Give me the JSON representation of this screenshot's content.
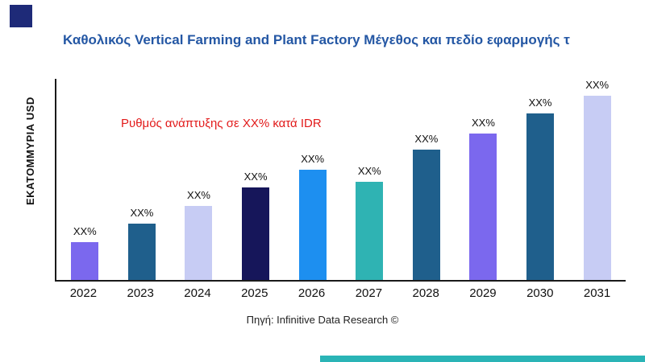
{
  "page": {
    "title": "Καθολικός Vertical Farming and Plant Factory Μέγεθος και πεδίο εφαρμογής τ",
    "y_axis_label": "ΕΚΑΤΟΜΜΥΡΙΑ USD",
    "annotation": "Ρυθμός ανάπτυξης σε XX% κατά IDR",
    "source": "Πηγή: Infinitive Data Research ©"
  },
  "chart_data": {
    "type": "bar",
    "title": "Καθολικός Vertical Farming and Plant Factory Μέγεθος και πεδίο εφαρμογής τ",
    "categories": [
      "2022",
      "2023",
      "2024",
      "2025",
      "2026",
      "2027",
      "2028",
      "2029",
      "2030",
      "2031"
    ],
    "values": [
      19,
      28,
      37,
      46,
      55,
      49,
      65,
      73,
      83,
      92
    ],
    "bar_labels": [
      "XX%",
      "XX%",
      "XX%",
      "XX%",
      "XX%",
      "XX%",
      "XX%",
      "XX%",
      "XX%",
      "XX%"
    ],
    "bar_colors": [
      "#7b68ee",
      "#1f5f8c",
      "#c7ccf4",
      "#16165a",
      "#1d8ff0",
      "#2fb3b3",
      "#1f5f8c",
      "#7b68ee",
      "#1f5f8c",
      "#c7ccf4"
    ],
    "xlabel": "",
    "ylabel": "ΕΚΑΤΟΜΜΥΡΙΑ USD",
    "ylim": [
      0,
      100
    ],
    "grid": false,
    "legend": false,
    "annotation": {
      "text": "Ρυθμός ανάπτυξης σε XX% κατά IDR",
      "color": "#e21a1a"
    }
  },
  "decorations": {
    "corner_square_color": "#1e2a78",
    "bottom_strip_color": "#2ab4b6",
    "title_color": "#2457a4",
    "axis_color": "#1a1a1a"
  }
}
